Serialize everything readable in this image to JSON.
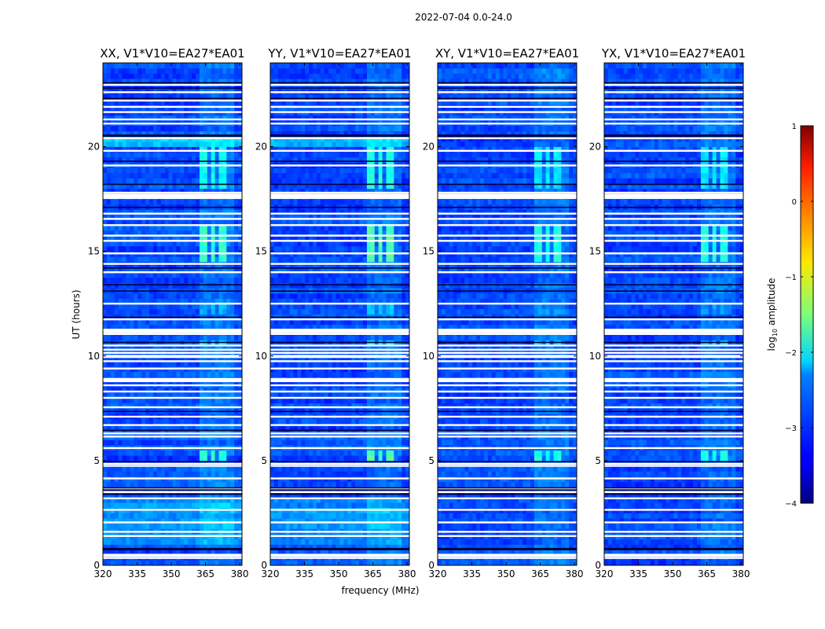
{
  "figure": {
    "title": "2022-07-04 0.0-24.0",
    "xlabel": "frequency (MHz)",
    "ylabel": "UT (hours)",
    "colorbar_label": "log10 amplitude",
    "colorbar_label_base": "log",
    "colorbar_label_sub": "10",
    "colorbar_label_rest": " amplitude"
  },
  "chart_data": {
    "type": "heatmap",
    "title": "2022-07-04 0.0-24.0",
    "xlabel": "frequency (MHz)",
    "ylabel": "UT (hours)",
    "xlim": [
      320,
      381
    ],
    "ylim": [
      0,
      24
    ],
    "x_ticks": [
      320,
      335,
      350,
      365,
      380
    ],
    "y_ticks": [
      0,
      5,
      10,
      15,
      20
    ],
    "colorbar": {
      "label": "log10 amplitude",
      "range": [
        -4,
        1
      ],
      "ticks": [
        1,
        0,
        -1,
        -2,
        -3,
        -4
      ],
      "tick_labels": [
        "1",
        "0",
        "−1",
        "−2",
        "−3",
        "−4"
      ],
      "colormap": "jet"
    },
    "panels": [
      {
        "title": "XX, V1*V10=EA27*EA01",
        "pol": "XX"
      },
      {
        "title": "YY, V1*V10=EA27*EA01",
        "pol": "YY"
      },
      {
        "title": "XY, V1*V10=EA27*EA01",
        "pol": "XY"
      },
      {
        "title": "YX, V1*V10=EA27*EA01",
        "pol": "YX"
      }
    ],
    "baseline_level": -3.0,
    "rfi_band_mhz": [
      363,
      377
    ],
    "rfi_subbands_mhz": [
      [
        363,
        366
      ],
      [
        367.5,
        369
      ],
      [
        370,
        372
      ],
      [
        373,
        375
      ]
    ],
    "gap_hours": [
      0.35,
      0.45,
      0.5,
      1.4,
      1.6,
      2.05,
      2.65,
      3.2,
      3.5,
      3.65,
      4.15,
      4.75,
      4.85,
      5.6,
      6.15,
      6.3,
      6.7,
      7.1,
      7.55,
      8.0,
      8.3,
      8.6,
      8.8,
      9.4,
      9.75,
      9.95,
      10.15,
      10.3,
      10.5,
      11.05,
      11.15,
      11.75,
      12.5,
      14.0,
      14.4,
      14.9,
      15.5,
      15.75,
      16.25,
      16.55,
      16.8,
      17.6,
      17.7,
      17.8,
      19.1,
      19.8,
      20.4,
      21.1,
      21.3,
      21.65,
      21.9,
      22.2,
      22.6,
      22.95
    ],
    "dark_hours": [
      0.75,
      0.8,
      3.4,
      3.6,
      3.7,
      4.95,
      6.45,
      7.35,
      10.65,
      11.85,
      13.1,
      13.4,
      14.2,
      17.1,
      18.2,
      19.3,
      20.5,
      20.55,
      22.3,
      22.8,
      23.05
    ],
    "rfi_events": [
      {
        "hours": [
          5.0,
          5.6
        ],
        "level": -2.0
      },
      {
        "hours": [
          10.4,
          10.7
        ],
        "level": -2.3
      },
      {
        "hours": [
          14.5,
          16.2
        ],
        "level": -2.0
      },
      {
        "hours": [
          18.0,
          20.0
        ],
        "level": -2.2
      },
      {
        "hours": [
          12.1,
          12.6
        ],
        "level": -2.6
      }
    ]
  }
}
